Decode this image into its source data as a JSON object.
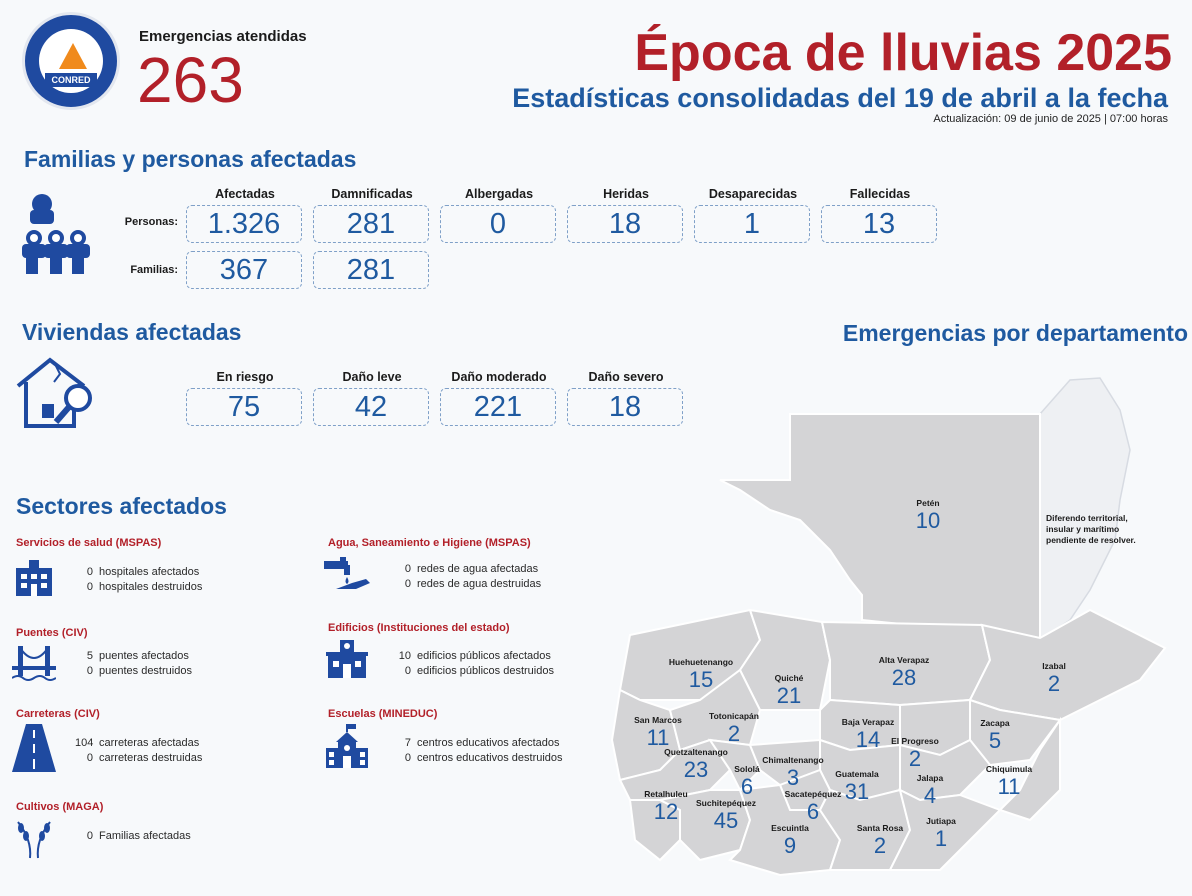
{
  "header": {
    "logo_text": "CONRED",
    "emergencies_label": "Emergencias atendidas",
    "emergencies_count": "263",
    "title": "Época de lluvias 2025",
    "subtitle": "Estadísticas consolidadas del 19 de abril a la fecha",
    "updated": "Actualización: 09 de junio de 2025 | 07:00 horas"
  },
  "families": {
    "title": "Familias y personas afectadas",
    "columns": [
      "Afectadas",
      "Damnificadas",
      "Albergadas",
      "Heridas",
      "Desaparecidas",
      "Fallecidas"
    ],
    "persons_label": "Personas:",
    "families_label": "Familias:",
    "persons": [
      "1.326",
      "281",
      "0",
      "18",
      "1",
      "13"
    ],
    "families": [
      "367",
      "281"
    ]
  },
  "housing": {
    "title": "Viviendas afectadas",
    "columns": [
      "En riesgo",
      "Daño leve",
      "Daño moderado",
      "Daño severo"
    ],
    "values": [
      "75",
      "42",
      "221",
      "18"
    ]
  },
  "sectors": {
    "title": "Sectores afectados",
    "health": {
      "title": "Servicios de salud (MSPAS)",
      "a_n": "0",
      "a_t": "hospitales afectados",
      "b_n": "0",
      "b_t": "hospitales destruidos"
    },
    "bridges": {
      "title": "Puentes (CIV)",
      "a_n": "5",
      "a_t": "puentes afectados",
      "b_n": "0",
      "b_t": "puentes destruidos"
    },
    "roads": {
      "title": "Carreteras (CIV)",
      "a_n": "104",
      "a_t": "carreteras afectadas",
      "b_n": "0",
      "b_t": "carreteras destruidas"
    },
    "crops": {
      "title": "Cultivos (MAGA)",
      "a_n": "0",
      "a_t": "Familias afectadas"
    },
    "water": {
      "title": "Agua, Saneamiento e Higiene (MSPAS)",
      "a_n": "0",
      "a_t": "redes de agua afectadas",
      "b_n": "0",
      "b_t": "redes de agua destruidas"
    },
    "buildings": {
      "title": "Edificios (Instituciones del estado)",
      "a_n": "10",
      "a_t": "edificios públicos afectados",
      "b_n": "0",
      "b_t": "edificios públicos destruidos"
    },
    "schools": {
      "title": "Escuelas (MINEDUC)",
      "a_n": "7",
      "a_t": "centros educativos afectados",
      "b_n": "0",
      "b_t": "centros educativos destruidos"
    }
  },
  "map": {
    "title": "Emergencias por departamento",
    "belize_note": "Diferendo territorial, insular y marítimo pendiente de resolver.",
    "departments": [
      {
        "name": "Petén",
        "value": "10"
      },
      {
        "name": "Huehuetenango",
        "value": "15"
      },
      {
        "name": "Quiché",
        "value": "21"
      },
      {
        "name": "Alta Verapaz",
        "value": "28"
      },
      {
        "name": "Izabal",
        "value": "2"
      },
      {
        "name": "San Marcos",
        "value": "11"
      },
      {
        "name": "Totonicapán",
        "value": "2"
      },
      {
        "name": "Baja Verapaz",
        "value": "14"
      },
      {
        "name": "El Progreso",
        "value": "2"
      },
      {
        "name": "Zacapa",
        "value": "5"
      },
      {
        "name": "Quetzaltenango",
        "value": "23"
      },
      {
        "name": "Sololá",
        "value": "6"
      },
      {
        "name": "Chimaltenango",
        "value": "3"
      },
      {
        "name": "Guatemala",
        "value": "31"
      },
      {
        "name": "Jalapa",
        "value": "4"
      },
      {
        "name": "Chiquimula",
        "value": "11"
      },
      {
        "name": "Retalhuleu",
        "value": "12"
      },
      {
        "name": "Suchitepéquez",
        "value": "45"
      },
      {
        "name": "Sacatepéquez",
        "value": "6"
      },
      {
        "name": "Escuintla",
        "value": "9"
      },
      {
        "name": "Santa Rosa",
        "value": "2"
      },
      {
        "name": "Jutiapa",
        "value": "1"
      }
    ]
  }
}
